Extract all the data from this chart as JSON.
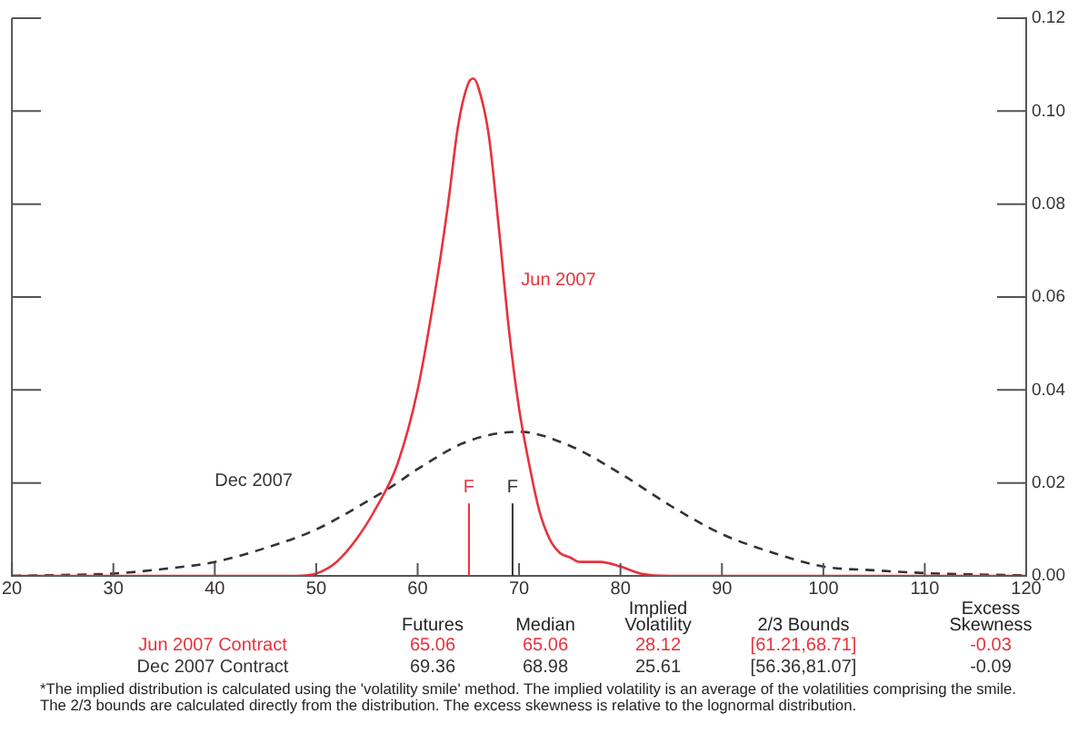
{
  "chart_data": {
    "type": "line",
    "xlim": [
      20,
      120
    ],
    "xticks": [
      20,
      30,
      40,
      50,
      60,
      70,
      80,
      90,
      100,
      110,
      120
    ],
    "ylim": [
      0,
      0.12
    ],
    "yticks": [
      {
        "value": 0,
        "label": "0.00"
      },
      {
        "value": 0.02,
        "label": "0.02"
      },
      {
        "value": 0.04,
        "label": "0.04"
      },
      {
        "value": 0.06,
        "label": "0.06"
      },
      {
        "value": 0.08,
        "label": "0.08"
      },
      {
        "value": 0.1,
        "label": "0.10"
      },
      {
        "value": 0.12,
        "label": "0.12"
      }
    ],
    "grid": false,
    "legend": false,
    "marker": "none",
    "series": [
      {
        "name": "Jun 2007",
        "color": "#e8323c",
        "line_style": "solid",
        "x": [
          20,
          48,
          50,
          52,
          54,
          56,
          58,
          60,
          62,
          63,
          64,
          65,
          65.5,
          66,
          67,
          68,
          69,
          70,
          71,
          72,
          73,
          74,
          75,
          76,
          78,
          80,
          82,
          85,
          120
        ],
        "values": [
          0,
          0,
          0.0005,
          0.003,
          0.008,
          0.015,
          0.024,
          0.04,
          0.065,
          0.08,
          0.097,
          0.106,
          0.107,
          0.105,
          0.095,
          0.075,
          0.053,
          0.036,
          0.024,
          0.014,
          0.008,
          0.005,
          0.004,
          0.003,
          0.003,
          0.002,
          0.0005,
          0,
          0
        ]
      },
      {
        "name": "Dec 2007",
        "color": "#333333",
        "line_style": "dashed",
        "x": [
          20,
          25,
          30,
          35,
          40,
          45,
          50,
          55,
          58,
          60,
          65,
          70,
          75,
          80,
          85,
          90,
          95,
          100,
          105,
          110,
          115,
          120
        ],
        "values": [
          0,
          0.0002,
          0.0005,
          0.0015,
          0.003,
          0.006,
          0.01,
          0.016,
          0.02,
          0.023,
          0.029,
          0.031,
          0.028,
          0.022,
          0.015,
          0.009,
          0.005,
          0.002,
          0.0012,
          0.0006,
          0.0003,
          0.0001
        ]
      }
    ],
    "ref_lines": [
      {
        "axis": "x",
        "value": 65.06,
        "label": "F",
        "color": "#e8323c"
      },
      {
        "axis": "x",
        "value": 69.36,
        "label": "F",
        "color": "#333333"
      }
    ],
    "annotations": [
      "Futures",
      "Median",
      "Implied\nVolatility",
      "2/3 Bounds",
      "Excess\nSkewness",
      "Jun 2007 Contract",
      "65.06",
      "65.06",
      "28.12",
      "[61.21,68.71]",
      "-0.03",
      "Dec 2007 Contract",
      "69.36",
      "68.98",
      "25.61",
      "[56.36,81.07]",
      "-0.09",
      "*The implied distribution is calculated using the 'volatility smile' method.  The implied volatility is an average of the volatilities comprising the smile.  The 2/3 bounds are calculated directly from the distribution.  The excess skewness is relative to the lognormal distribution."
    ]
  }
}
